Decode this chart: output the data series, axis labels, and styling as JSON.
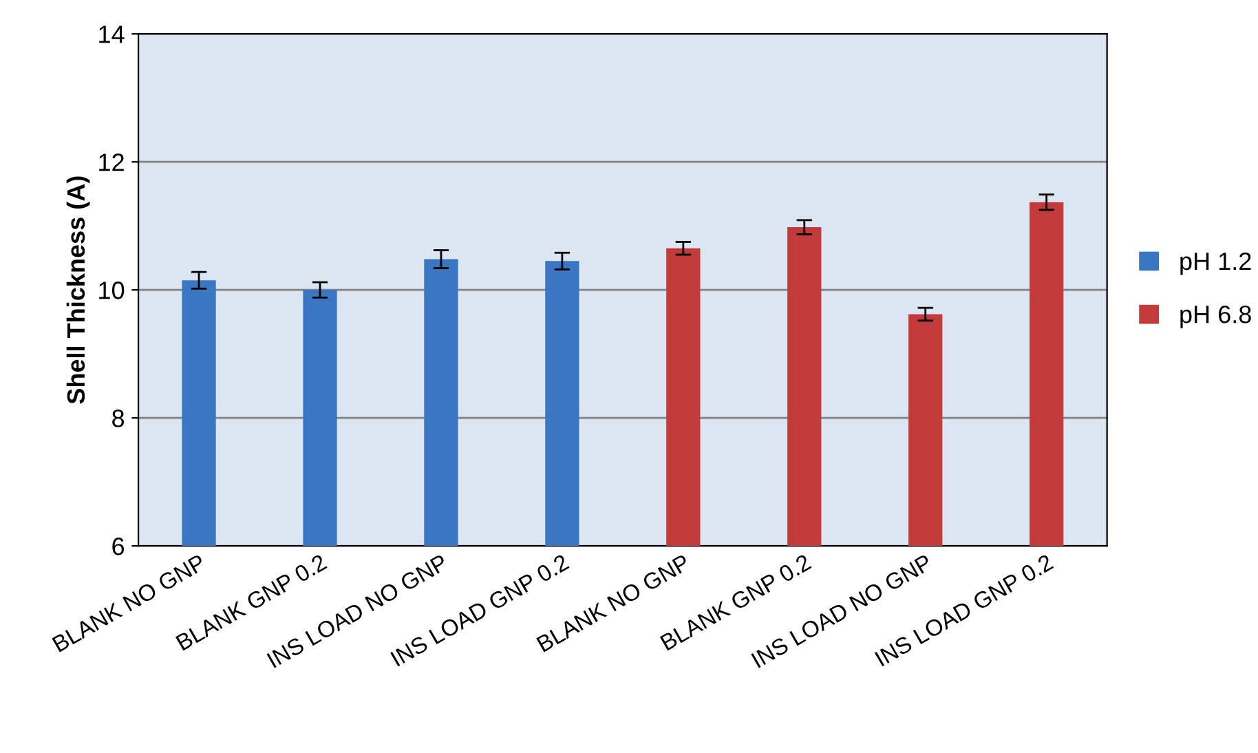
{
  "chart_data": {
    "type": "bar",
    "ylabel": "Shell Thickness (A)",
    "categories": [
      "BLANK NO GNP",
      "BLANK GNP 0.2",
      "INS LOAD NO GNP",
      "INS LOAD GNP 0.2",
      "BLANK NO GNP",
      "BLANK GNP 0.2",
      "INS LOAD NO GNP",
      "INS LOAD GNP 0.2"
    ],
    "series": [
      {
        "name": "pH 1.2",
        "color": "#3a76c2",
        "values": [
          10.15,
          10.0,
          10.48,
          10.45,
          null,
          null,
          null,
          null
        ],
        "errors": [
          0.13,
          0.12,
          0.14,
          0.13,
          null,
          null,
          null,
          null
        ]
      },
      {
        "name": "pH 6.8",
        "color": "#c23a3a",
        "values": [
          null,
          null,
          null,
          null,
          10.65,
          10.98,
          9.62,
          11.37
        ],
        "errors": [
          null,
          null,
          null,
          null,
          0.1,
          0.11,
          0.1,
          0.12
        ]
      }
    ],
    "ylim": [
      6,
      14
    ],
    "yticks": [
      6,
      8,
      10,
      12,
      14
    ],
    "grid": "y",
    "legend": "right"
  }
}
